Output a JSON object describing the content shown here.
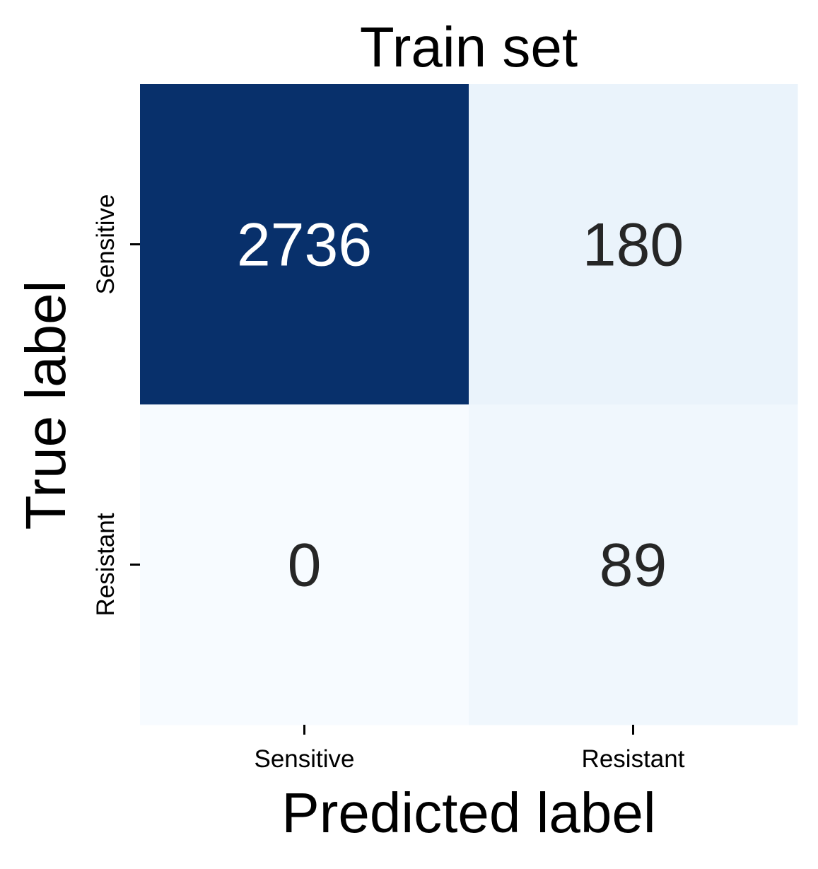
{
  "chart_data": {
    "type": "heatmap",
    "title": "Train set",
    "xlabel": "Predicted label",
    "ylabel": "True label",
    "x_categories": [
      "Sensitive",
      "Resistant"
    ],
    "y_categories": [
      "Sensitive",
      "Resistant"
    ],
    "values": [
      [
        2736,
        180
      ],
      [
        0,
        89
      ]
    ],
    "colormap": "Blues",
    "color_range": [
      0,
      2736
    ],
    "colorbar": false,
    "grid": false,
    "colors": {
      "cell_max": "#08306b",
      "cell_min": "#f7fbff",
      "text_dark": "#262626",
      "text_light": "#ffffff",
      "axis_text": "#000000"
    }
  }
}
